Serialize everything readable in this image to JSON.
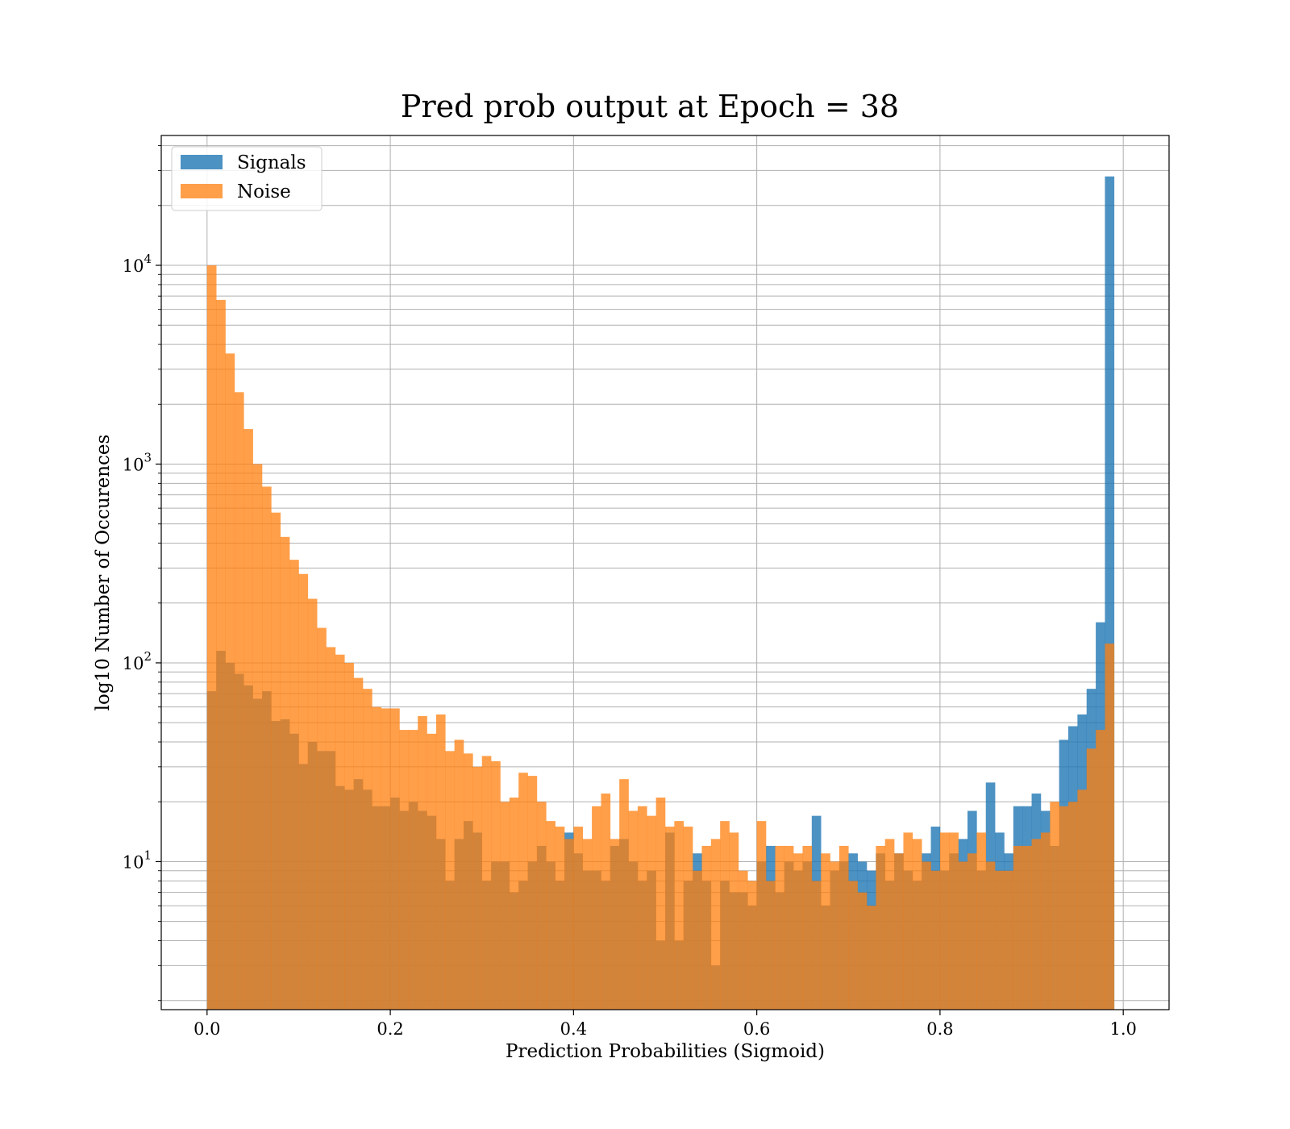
{
  "chart_data": {
    "type": "histogram",
    "title": "Pred prob output at Epoch = 38",
    "xlabel": "Prediction Probabilities (Sigmoid)",
    "ylabel": "log10 Number of Occurences",
    "xlim": [
      -0.05,
      1.05
    ],
    "ylim": [
      1.8,
      45000
    ],
    "y_scale": "log",
    "grid": true,
    "legend_position": "top-left",
    "bin_range": [
      0.0,
      1.0
    ],
    "num_bins": 100,
    "x_ticks": [
      0.0,
      0.2,
      0.4,
      0.6,
      0.8,
      1.0
    ],
    "x_tick_labels": [
      "0.0",
      "0.2",
      "0.4",
      "0.6",
      "0.8",
      "1.0"
    ],
    "y_ticks": [
      10,
      100,
      1000,
      10000
    ],
    "y_tick_labels": [
      {
        "base": "10",
        "exp": "1"
      },
      {
        "base": "10",
        "exp": "2"
      },
      {
        "base": "10",
        "exp": "3"
      },
      {
        "base": "10",
        "exp": "4"
      }
    ],
    "series": [
      {
        "name": "Signals",
        "color": "#1f77b4",
        "opacity": 0.8,
        "values": [
          72,
          115,
          100,
          88,
          77,
          66,
          72,
          51,
          52,
          44,
          31,
          40,
          36,
          36,
          24,
          23,
          26,
          23,
          19,
          19,
          21,
          18,
          20,
          18,
          17,
          13,
          8,
          13,
          16,
          14,
          8,
          10,
          10,
          7,
          8,
          10,
          12,
          10,
          8,
          14,
          11,
          9,
          9,
          8,
          12,
          13,
          10,
          8,
          9,
          4,
          14,
          4,
          8,
          11,
          8,
          3,
          8,
          7,
          7,
          6,
          10,
          12,
          7,
          10,
          9,
          10,
          17,
          6,
          9,
          10,
          11,
          10,
          9,
          11,
          8,
          11,
          9,
          8,
          11,
          15,
          9,
          11,
          13,
          18,
          9,
          25,
          14,
          11,
          19,
          19,
          22,
          18,
          12,
          41,
          48,
          55,
          74,
          160,
          28000,
          0
        ]
      },
      {
        "name": "Noise",
        "color": "#ff7f0e",
        "opacity": 0.75,
        "values": [
          10000,
          6700,
          3600,
          2300,
          1500,
          1000,
          770,
          570,
          430,
          330,
          280,
          210,
          150,
          120,
          110,
          100,
          84,
          74,
          60,
          59,
          59,
          46,
          46,
          54,
          44,
          55,
          36,
          41,
          35,
          30,
          34,
          32,
          20,
          21,
          28,
          27,
          20,
          16,
          15,
          13,
          15,
          13,
          19,
          22,
          13,
          26,
          18,
          19,
          17,
          21,
          15,
          16,
          15,
          9,
          12,
          13,
          16,
          14,
          9,
          8,
          16,
          8,
          12,
          12,
          11,
          12,
          8,
          11,
          10,
          12,
          8,
          7,
          6,
          12,
          13,
          11,
          14,
          13,
          10,
          9,
          14,
          14,
          10,
          11,
          14,
          10,
          9,
          9,
          12,
          12,
          13,
          14,
          20,
          19,
          20,
          23,
          37,
          46,
          125,
          0
        ]
      }
    ]
  }
}
